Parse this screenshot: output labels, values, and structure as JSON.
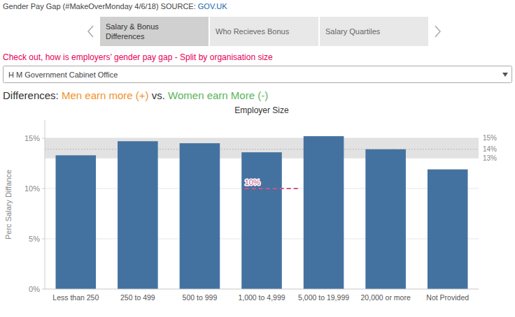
{
  "page": {
    "header": [
      {
        "text": "Gender Pay Gap (#MakeOverMonday 4/6/18) SOURCE: ",
        "color": "#444444"
      },
      {
        "text": "GOV.UK",
        "color": "#2266aa"
      }
    ],
    "tabs": [
      {
        "text": "Salary & Bonus\nDifferences",
        "active": true
      },
      {
        "text": "Who Recieves Bonus",
        "active": false
      },
      {
        "text": "Salary Quartiles",
        "active": false
      }
    ],
    "subtitle": {
      "text": "Check out, how is employers’ gender pay gap - Split by organisation size",
      "color": "#e8005a"
    },
    "dropdown": "H M Government Cabinet Office"
  },
  "chart_data": {
    "type": "bar",
    "title": [
      {
        "text": "Differences: ",
        "color": "#333333"
      },
      {
        "text": "Men earn more (+)",
        "color": "#f0922b"
      },
      {
        "text": " vs. ",
        "color": "#333333"
      },
      {
        "text": "Women earn More (-)",
        "color": "#5ab55a"
      }
    ],
    "xlabel": "Employer Size",
    "ylabel": "Perc Salary Diffance",
    "categories": [
      "Less than 250",
      "250 to 499",
      "500 to 999",
      "1,000 to 4,999",
      "5,000 to 19,999",
      "20,000 or more",
      "Not Provided"
    ],
    "values": [
      13.3,
      14.7,
      14.5,
      13.6,
      15.2,
      13.9,
      11.9
    ],
    "color": "#4472a0",
    "ylim": [
      0,
      16.8
    ],
    "yticks": [
      {
        "value": 0,
        "label": "0%"
      },
      {
        "value": 5,
        "label": "5%"
      },
      {
        "value": 10,
        "label": "10%"
      },
      {
        "value": 15,
        "label": "15%"
      }
    ],
    "grid": true,
    "reference_band": {
      "low": 13,
      "high": 15,
      "color": "#dddddd"
    },
    "reference_line": {
      "y": 13.9,
      "color": "#aaaaaa",
      "line_style": "dotted"
    },
    "band_labels": [
      {
        "value": 15,
        "label": "15%"
      },
      {
        "value": 13.9,
        "label": "14%"
      },
      {
        "value": 13,
        "label": "13%"
      }
    ],
    "threshold_line": {
      "y": 10,
      "label": "10%",
      "color": "#cc5588",
      "line_style": "dashed"
    }
  }
}
